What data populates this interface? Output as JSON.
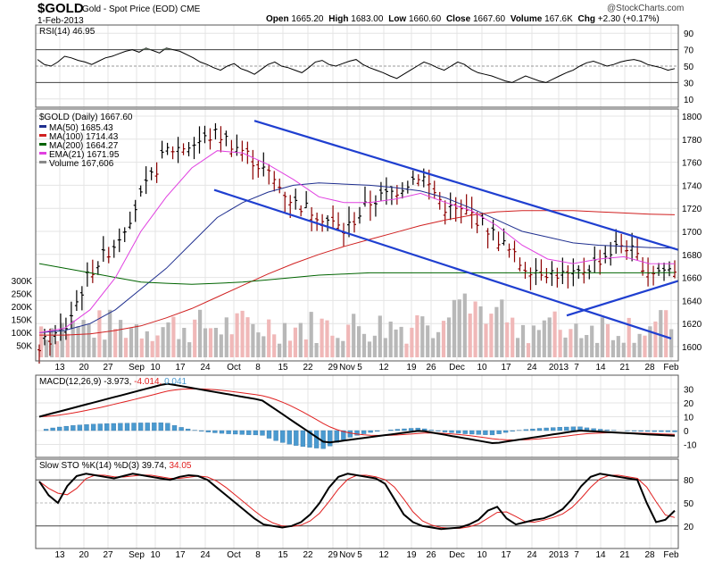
{
  "header": {
    "symbol": "$GOLD",
    "subtitle": "Gold - Spot Price (EOD) CME",
    "date": "1-Feb-2013",
    "open_label": "Open",
    "open": "1665.20",
    "high_label": "High",
    "high": "1683.00",
    "low_label": "Low",
    "low": "1660.60",
    "close_label": "Close",
    "close": "1667.60",
    "volume_label": "Volume",
    "volume": "167.6K",
    "chg_label": "Chg",
    "chg": "+2.30 (+0.17%)",
    "brand": "@StockCharts.com"
  },
  "colors": {
    "price_bar_up": "#000000",
    "price_bar_down": "#8b0000",
    "ma50": "#1f2f8f",
    "ma100": "#d02020",
    "ma200": "#006400",
    "ema21": "#e040e0",
    "trendline": "#1f3fd0",
    "volume_up": "#b8b8b8",
    "volume_down": "#f0b8b8",
    "rsi_fill": "#5a6a5a",
    "macd_hist": "#4a9ad0",
    "macd_line": "#000000",
    "signal_line": "#e02020",
    "stoch_k": "#000000",
    "stoch_d": "#e02020"
  },
  "rsi_panel": {
    "label": "RSI(14) 46.95",
    "ticks": [
      "90",
      "70",
      "50",
      "30",
      "10"
    ]
  },
  "price_panel": {
    "label": "$GOLD (Daily) 1667.60",
    "legend": [
      {
        "text": "MA(50) 1685.43",
        "color": "#1f2f8f"
      },
      {
        "text": "MA(100) 1714.43",
        "color": "#d02020"
      },
      {
        "text": "MA(200) 1664.27",
        "color": "#006400"
      },
      {
        "text": "EMA(21) 1671.95",
        "color": "#e040e0"
      },
      {
        "text": "Volume 167,606",
        "color": "#888888"
      }
    ],
    "price_ticks": [
      "1800",
      "1780",
      "1760",
      "1740",
      "1720",
      "1700",
      "1680",
      "1660",
      "1640",
      "1620",
      "1600"
    ],
    "volume_ticks": [
      "300K",
      "250K",
      "200K",
      "150K",
      "100K",
      "50K"
    ]
  },
  "macd_panel": {
    "label_black": "MACD(12,26,9) -3.973,",
    "label_red": "-4.014,",
    "label_blue": "0.041",
    "ticks": [
      "30",
      "20",
      "10",
      "0",
      "-10"
    ]
  },
  "stoch_panel": {
    "label_black": "Slow STO %K(14) %D(3) 39.74,",
    "label_red": "34.05",
    "ticks": [
      "80",
      "50",
      "20"
    ]
  },
  "x_axis": [
    "13",
    "20",
    "27",
    "Sep",
    "10",
    "17",
    "24",
    "Oct",
    "8",
    "15",
    "22",
    "29",
    "Nov",
    "5",
    "12",
    "19",
    "26",
    "Dec",
    "10",
    "17",
    "24",
    "2013",
    "7",
    "14",
    "21",
    "28",
    "Feb"
  ],
  "chart_data": {
    "type": "line",
    "title": "$GOLD (Daily) 1667.60",
    "ylabel": "",
    "ylim": [
      1595,
      1805
    ],
    "series": [
      {
        "name": "Close",
        "x": [
          "13",
          "20",
          "27",
          "Sep",
          "10",
          "17",
          "24",
          "Oct",
          "8",
          "15",
          "22",
          "29",
          "Nov5",
          "12",
          "19",
          "26",
          "Dec",
          "10",
          "17",
          "24",
          "2013",
          "7",
          "14",
          "21",
          "28",
          "Feb"
        ],
        "values": [
          1600,
          1615,
          1665,
          1690,
          1730,
          1770,
          1775,
          1785,
          1770,
          1750,
          1725,
          1715,
          1700,
          1725,
          1735,
          1750,
          1720,
          1715,
          1695,
          1670,
          1665,
          1660,
          1675,
          1690,
          1665,
          1667.6
        ]
      },
      {
        "name": "MA(50)",
        "values": [
          1612,
          1614,
          1620,
          1632,
          1650,
          1668,
          1690,
          1712,
          1725,
          1734,
          1740,
          1742,
          1741,
          1740,
          1738,
          1735,
          1729,
          1720,
          1710,
          1700,
          1695,
          1690,
          1688,
          1687,
          1686,
          1685.43
        ]
      },
      {
        "name": "MA(100)",
        "values": [
          1610,
          1610,
          1611,
          1614,
          1618,
          1625,
          1633,
          1643,
          1653,
          1663,
          1672,
          1680,
          1687,
          1693,
          1699,
          1705,
          1710,
          1714,
          1717,
          1718,
          1718,
          1718,
          1717,
          1716,
          1715,
          1714.43
        ]
      },
      {
        "name": "MA(200)",
        "values": [
          1672,
          1668,
          1664,
          1660,
          1656,
          1655,
          1654,
          1655,
          1656,
          1658,
          1660,
          1662,
          1663,
          1664,
          1664,
          1664,
          1664,
          1664,
          1664,
          1664,
          1664,
          1664,
          1664,
          1664,
          1664,
          1664.27
        ]
      },
      {
        "name": "EMA(21)",
        "values": [
          1612,
          1616,
          1632,
          1660,
          1700,
          1730,
          1755,
          1770,
          1768,
          1758,
          1745,
          1730,
          1725,
          1725,
          1728,
          1733,
          1725,
          1718,
          1705,
          1688,
          1676,
          1672,
          1676,
          1678,
          1672,
          1671.95
        ]
      }
    ]
  }
}
